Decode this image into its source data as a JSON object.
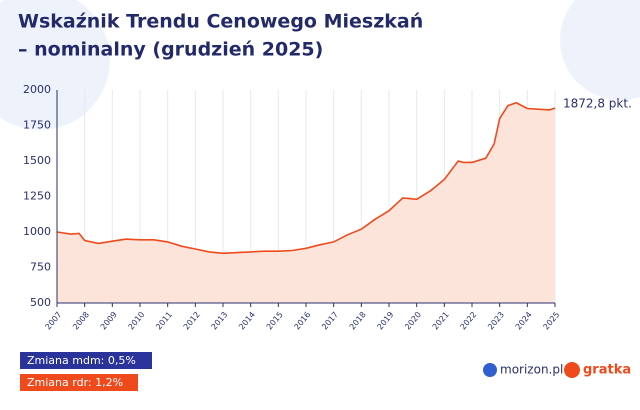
{
  "chart_data": {
    "type": "area",
    "title": "Wskaźnik Trendu Cenowego Mieszkań",
    "subtitle": "– nominalny (grudzień 2025)",
    "color": "#ef4a1c",
    "fill": "#fde4da",
    "x": [
      2007.0,
      2007.5,
      2007.8,
      2008.0,
      2008.5,
      2009.0,
      2009.5,
      2010.0,
      2010.5,
      2011.0,
      2011.5,
      2012.0,
      2012.5,
      2013.0,
      2013.5,
      2014.0,
      2014.5,
      2015.0,
      2015.5,
      2016.0,
      2016.5,
      2017.0,
      2017.5,
      2018.0,
      2018.5,
      2019.0,
      2019.5,
      2020.0,
      2020.5,
      2021.0,
      2021.5,
      2021.7,
      2022.0,
      2022.5,
      2022.8,
      2023.0,
      2023.3,
      2023.6,
      2024.0,
      2024.8,
      2025.0
    ],
    "values": [
      1000,
      985,
      990,
      940,
      920,
      935,
      950,
      945,
      945,
      930,
      900,
      880,
      860,
      850,
      855,
      860,
      865,
      865,
      870,
      885,
      910,
      930,
      980,
      1020,
      1090,
      1150,
      1240,
      1230,
      1290,
      1370,
      1500,
      1490,
      1490,
      1520,
      1620,
      1800,
      1890,
      1910,
      1870,
      1860,
      1872.8
    ],
    "value_labels": [
      null,
      null,
      null,
      null,
      null,
      null,
      null,
      null,
      null,
      null,
      null,
      null,
      null,
      null,
      null,
      null,
      null,
      null,
      null,
      null,
      null,
      null,
      null,
      null,
      null,
      null,
      null,
      null,
      null,
      null,
      null,
      null,
      null,
      null,
      null,
      null,
      null,
      null,
      null,
      null,
      "1872,8 pkt."
    ],
    "xlim": [
      2007,
      2025
    ],
    "xticks": [
      2007,
      2008,
      2009,
      2010,
      2011,
      2012,
      2013,
      2014,
      2015,
      2016,
      2017,
      2018,
      2019,
      2020,
      2021,
      2022,
      2023,
      2024,
      2025
    ],
    "ylim": [
      500,
      2000
    ],
    "yticks": [
      500,
      750,
      1000,
      1250,
      1500,
      1750,
      2000
    ],
    "grid": true
  },
  "footer": {
    "badges": [
      "Zmiana mdm: 0,5%",
      "Zmiana rdr: 1,2%"
    ],
    "logos": [
      "morizon.pl",
      "gratka"
    ]
  }
}
